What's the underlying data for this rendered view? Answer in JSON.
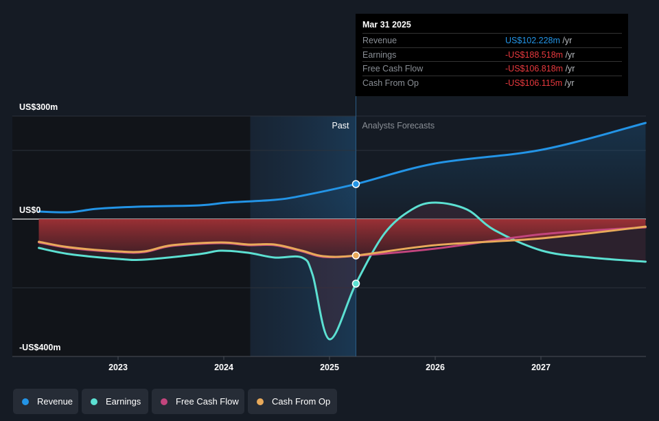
{
  "tooltip": {
    "date": "Mar 31 2025",
    "rows": [
      {
        "label": "Revenue",
        "value": "US$102.228m",
        "unit": "/yr",
        "color": "#2394e6"
      },
      {
        "label": "Earnings",
        "value": "-US$188.518m",
        "unit": "/yr",
        "color": "#e8393e"
      },
      {
        "label": "Free Cash Flow",
        "value": "-US$106.818m",
        "unit": "/yr",
        "color": "#e8393e"
      },
      {
        "label": "Cash From Op",
        "value": "-US$106.115m",
        "unit": "/yr",
        "color": "#e8393e"
      }
    ]
  },
  "legend": [
    "Revenue",
    "Earnings",
    "Free Cash Flow",
    "Cash From Op"
  ],
  "chart_data": {
    "type": "line",
    "ylim": [
      -400,
      300
    ],
    "xlim": [
      2022.25,
      2028
    ],
    "y_tick_labels": [
      {
        "value": 300,
        "label": "US$300m"
      },
      {
        "value": 0,
        "label": "US$0"
      },
      {
        "value": -400,
        "label": "-US$400m"
      }
    ],
    "gridlines": [
      300,
      200,
      0,
      -200,
      -400
    ],
    "x_ticks": [
      2023,
      2024,
      2025,
      2026,
      2027
    ],
    "x_tick_labels": [
      "2023",
      "2024",
      "2025",
      "2026",
      "2027"
    ],
    "divider_x": 2025.25,
    "past_label": "Past",
    "forecast_label": "Analysts Forecasts",
    "highlight_start": 2024.25,
    "series": [
      {
        "name": "Revenue",
        "color": "#2394e6",
        "points": [
          [
            2022.25,
            22
          ],
          [
            2022.54,
            20
          ],
          [
            2022.8,
            30
          ],
          [
            2023.18,
            36
          ],
          [
            2023.77,
            40
          ],
          [
            2024.03,
            48
          ],
          [
            2024.48,
            56
          ],
          [
            2024.74,
            68
          ],
          [
            2025.25,
            102
          ],
          [
            2026,
            162
          ],
          [
            2027.01,
            202
          ],
          [
            2027.99,
            280
          ]
        ]
      },
      {
        "name": "Earnings",
        "color": "#5ce0d2",
        "points": [
          [
            2022.25,
            -84
          ],
          [
            2022.54,
            -102
          ],
          [
            2023,
            -116
          ],
          [
            2023.25,
            -118
          ],
          [
            2023.77,
            -102
          ],
          [
            2023.97,
            -92
          ],
          [
            2024.23,
            -98
          ],
          [
            2024.48,
            -112
          ],
          [
            2024.74,
            -112
          ],
          [
            2024.84,
            -162
          ],
          [
            2025,
            -350
          ],
          [
            2025.25,
            -188
          ],
          [
            2025.52,
            -42
          ],
          [
            2025.78,
            28
          ],
          [
            2026,
            48
          ],
          [
            2026.3,
            28
          ],
          [
            2026.56,
            -32
          ],
          [
            2027.01,
            -92
          ],
          [
            2027.47,
            -112
          ],
          [
            2027.99,
            -124
          ]
        ]
      },
      {
        "name": "Free Cash Flow",
        "color": "#c2457d",
        "points": [
          [
            2022.25,
            -68
          ],
          [
            2022.54,
            -84
          ],
          [
            2023,
            -96
          ],
          [
            2023.25,
            -96
          ],
          [
            2023.51,
            -78
          ],
          [
            2023.97,
            -70
          ],
          [
            2024.23,
            -76
          ],
          [
            2024.48,
            -76
          ],
          [
            2024.74,
            -94
          ],
          [
            2024.94,
            -110
          ],
          [
            2025.25,
            -107
          ],
          [
            2026,
            -86
          ],
          [
            2027.01,
            -44
          ],
          [
            2027.99,
            -24
          ]
        ]
      },
      {
        "name": "Cash From Op",
        "color": "#e8a95a",
        "points": [
          [
            2022.25,
            -66
          ],
          [
            2022.54,
            -82
          ],
          [
            2023,
            -94
          ],
          [
            2023.25,
            -94
          ],
          [
            2023.51,
            -76
          ],
          [
            2023.97,
            -68
          ],
          [
            2024.23,
            -74
          ],
          [
            2024.48,
            -74
          ],
          [
            2024.74,
            -92
          ],
          [
            2024.94,
            -108
          ],
          [
            2025.25,
            -106
          ],
          [
            2026,
            -76
          ],
          [
            2027.01,
            -56
          ],
          [
            2027.99,
            -22
          ]
        ]
      }
    ]
  }
}
